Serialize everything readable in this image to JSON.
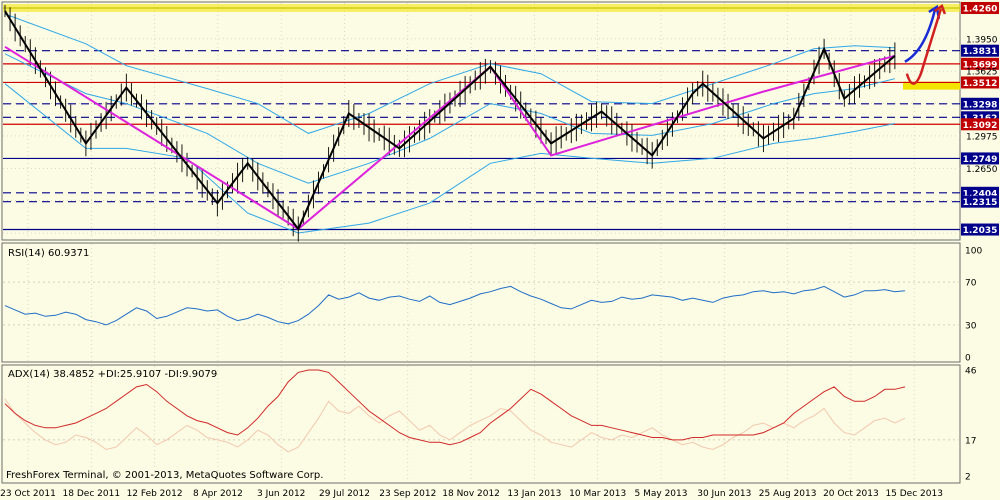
{
  "chart_data": [
    {
      "type": "line",
      "panel": "price",
      "y_range": [
        1.195,
        1.431
      ],
      "horizontal_levels": [
        {
          "label": "1.4260",
          "value": 1.426,
          "style": "solid",
          "color": "#c8c800",
          "label_bg": "#c00000",
          "label_color": "#ffffff"
        },
        {
          "label": "1.3831",
          "value": 1.3831,
          "style": "dashed",
          "color": "#00008b",
          "label_bg": "#00008b",
          "label_color": "#ffffff"
        },
        {
          "label": "1.3699",
          "value": 1.3699,
          "style": "solid",
          "color": "#d00000",
          "label_bg": "#c00000",
          "label_color": "#ffffff"
        },
        {
          "label": "1.3512",
          "value": 1.3512,
          "style": "solid",
          "color": "#d00000",
          "label_bg": "#c00000",
          "label_color": "#ffffff"
        },
        {
          "label": "1.3298",
          "value": 1.3298,
          "style": "dashed",
          "color": "#00008b",
          "label_bg": "#00008b",
          "label_color": "#ffffff"
        },
        {
          "label": "1.3162",
          "value": 1.3162,
          "style": "dashed",
          "color": "#00008b",
          "label_bg": "#00008b",
          "label_color": "#ffffff"
        },
        {
          "label": "1.3092",
          "value": 1.3092,
          "style": "solid",
          "color": "#d00000",
          "label_bg": "#c00000",
          "label_color": "#ffffff"
        },
        {
          "label": "1.2749",
          "value": 1.2749,
          "style": "solid",
          "color": "#00008b",
          "label_bg": "#00008b",
          "label_color": "#ffffff"
        },
        {
          "label": "1.2404",
          "value": 1.2404,
          "style": "dashed",
          "color": "#00008b",
          "label_bg": "#00008b",
          "label_color": "#ffffff"
        },
        {
          "label": "1.2315",
          "value": 1.2315,
          "style": "dashed",
          "color": "#00008b",
          "label_bg": "#00008b",
          "label_color": "#ffffff"
        },
        {
          "label": "1.2035",
          "value": 1.2035,
          "style": "solid",
          "color": "#00008b",
          "label_bg": "#00008b",
          "label_color": "#ffffff"
        }
      ],
      "axis_ticks": [
        "1.3950",
        "1.3625",
        "1.2975",
        "1.2650"
      ],
      "zigzag_black": [
        [
          0,
          1.423
        ],
        [
          8,
          1.29
        ],
        [
          12,
          1.346
        ],
        [
          21,
          1.23
        ],
        [
          24,
          1.27
        ],
        [
          29,
          1.204
        ],
        [
          34,
          1.32
        ],
        [
          39,
          1.285
        ],
        [
          48,
          1.367
        ],
        [
          54,
          1.29
        ],
        [
          59,
          1.322
        ],
        [
          64,
          1.278
        ],
        [
          68,
          1.34
        ],
        [
          69,
          1.35
        ],
        [
          75,
          1.295
        ],
        [
          78,
          1.315
        ],
        [
          81,
          1.385
        ],
        [
          83,
          1.335
        ],
        [
          88,
          1.378
        ]
      ],
      "zigzag_magenta": [
        [
          0,
          1.387
        ],
        [
          29,
          1.204
        ],
        [
          48,
          1.367
        ],
        [
          54,
          1.278
        ],
        [
          75,
          1.342
        ],
        [
          88,
          1.378
        ]
      ],
      "bollinger_upper": [
        [
          0,
          1.42
        ],
        [
          8,
          1.39
        ],
        [
          12,
          1.368
        ],
        [
          20,
          1.345
        ],
        [
          25,
          1.33
        ],
        [
          30,
          1.3
        ],
        [
          36,
          1.32
        ],
        [
          42,
          1.35
        ],
        [
          48,
          1.37
        ],
        [
          53,
          1.36
        ],
        [
          58,
          1.332
        ],
        [
          64,
          1.33
        ],
        [
          70,
          1.35
        ],
        [
          76,
          1.37
        ],
        [
          80,
          1.385
        ],
        [
          84,
          1.388
        ],
        [
          88,
          1.386
        ]
      ],
      "bollinger_middle": [
        [
          0,
          1.38
        ],
        [
          8,
          1.34
        ],
        [
          12,
          1.33
        ],
        [
          20,
          1.3
        ],
        [
          25,
          1.27
        ],
        [
          30,
          1.25
        ],
        [
          36,
          1.27
        ],
        [
          42,
          1.295
        ],
        [
          48,
          1.33
        ],
        [
          53,
          1.32
        ],
        [
          58,
          1.3
        ],
        [
          64,
          1.298
        ],
        [
          70,
          1.31
        ],
        [
          76,
          1.33
        ],
        [
          80,
          1.34
        ],
        [
          84,
          1.345
        ],
        [
          88,
          1.355
        ]
      ],
      "bollinger_lower": [
        [
          0,
          1.35
        ],
        [
          8,
          1.285
        ],
        [
          12,
          1.285
        ],
        [
          18,
          1.275
        ],
        [
          24,
          1.22
        ],
        [
          29,
          1.2
        ],
        [
          36,
          1.21
        ],
        [
          42,
          1.23
        ],
        [
          48,
          1.27
        ],
        [
          53,
          1.28
        ],
        [
          58,
          1.275
        ],
        [
          64,
          1.27
        ],
        [
          70,
          1.275
        ],
        [
          76,
          1.29
        ],
        [
          80,
          1.295
        ],
        [
          84,
          1.302
        ],
        [
          88,
          1.31
        ]
      ],
      "arrows": [
        {
          "color": "#1a2cd6"
        },
        {
          "color": "#d02020"
        }
      ]
    },
    {
      "type": "line",
      "panel": "rsi",
      "title": "RSI(14) 60.9371",
      "y_range": [
        0,
        100
      ],
      "tick_labels": [
        "100",
        "70",
        "30",
        "0"
      ],
      "levels": [
        70,
        30
      ],
      "series": [
        {
          "values": [
            48,
            44,
            40,
            41,
            38,
            39,
            42,
            40,
            35,
            33,
            30,
            34,
            40,
            46,
            43,
            36,
            38,
            42,
            46,
            45,
            43,
            44,
            38,
            34,
            36,
            40,
            37,
            33,
            31,
            34,
            40,
            48,
            58,
            54,
            56,
            60,
            55,
            53,
            56,
            57,
            54,
            52,
            57,
            51,
            49,
            52,
            55,
            59,
            61,
            64,
            66,
            61,
            57,
            54,
            50,
            46,
            45,
            49,
            53,
            51,
            52,
            56,
            54,
            55,
            58,
            57,
            56,
            53,
            55,
            53,
            51,
            55,
            57,
            58,
            61,
            62,
            60,
            61,
            59,
            62,
            63,
            66,
            61,
            56,
            58,
            62,
            62,
            63,
            61,
            62
          ],
          "color": "#1e6ec8"
        }
      ]
    },
    {
      "type": "line",
      "panel": "adx",
      "title": "ADX(14) 38.4852 +DI:25.9107 -DI:9.9079",
      "y_range": [
        2,
        46
      ],
      "tick_labels": [
        "46",
        "17",
        "2"
      ],
      "levels": [
        17
      ],
      "series": [
        {
          "values": [
            32,
            28,
            25,
            23,
            22,
            22,
            23,
            24,
            26,
            28,
            30,
            33,
            36,
            39,
            40,
            37,
            33,
            30,
            27,
            25,
            24,
            22,
            20,
            19,
            22,
            26,
            31,
            35,
            41,
            45,
            46,
            46,
            45,
            41,
            37,
            33,
            29,
            26,
            23,
            20,
            18,
            17,
            16,
            16,
            15,
            16,
            18,
            20,
            24,
            27,
            30,
            34,
            38,
            36,
            33,
            30,
            27,
            25,
            23,
            23,
            22,
            21,
            20,
            19,
            18,
            18,
            17,
            17,
            18,
            18,
            19,
            19,
            19,
            19,
            19,
            20,
            22,
            24,
            28,
            31,
            34,
            37,
            39,
            35,
            33,
            33,
            35,
            38,
            38,
            39
          ],
          "color": "#d02828"
        },
        {
          "values": [
            34,
            28,
            24,
            20,
            17,
            15,
            16,
            19,
            18,
            16,
            13,
            14,
            18,
            22,
            19,
            15,
            17,
            20,
            23,
            21,
            18,
            17,
            16,
            14,
            17,
            21,
            19,
            15,
            12,
            14,
            20,
            26,
            33,
            29,
            28,
            31,
            27,
            24,
            27,
            29,
            25,
            21,
            23,
            19,
            17,
            20,
            23,
            25,
            27,
            30,
            29,
            25,
            21,
            19,
            16,
            15,
            14,
            17,
            20,
            18,
            17,
            19,
            18,
            20,
            22,
            19,
            17,
            15,
            16,
            14,
            13,
            15,
            18,
            20,
            23,
            24,
            22,
            24,
            22,
            25,
            27,
            30,
            24,
            20,
            19,
            22,
            25,
            26,
            24,
            26
          ],
          "color": "#f2c8b0"
        }
      ]
    }
  ],
  "x_axis": {
    "labels": [
      "23 Oct 2011",
      "18 Dec 2011",
      "12 Feb 2012",
      "8 Apr 2012",
      "3 Jun 2012",
      "29 Jul 2012",
      "23 Sep 2012",
      "18 Nov 2012",
      "13 Jan 2013",
      "10 Mar 2013",
      "5 May 2013",
      "30 Jun 2013",
      "25 Aug 2013",
      "20 Oct 2013",
      "15 Dec 2013"
    ]
  },
  "footer": {
    "text": "FreshForex Terminal, © 2001-2013, MetaQuotes Software Corp."
  },
  "colors": {
    "background": "#fcfbe3",
    "grid": "#c6c3a8",
    "axis": "#6e6e6e",
    "price_bar": "#000000",
    "zigzag_black": "#000000",
    "zigzag_magenta": "#dd22dd",
    "bollinger": "#2fa8e8",
    "highlight_band": "#f2e400"
  }
}
